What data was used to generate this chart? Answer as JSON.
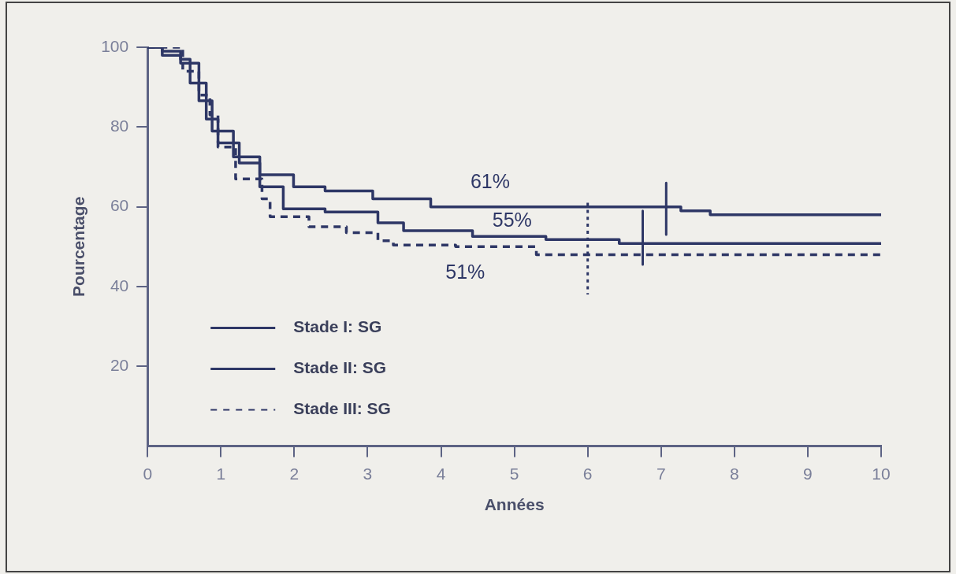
{
  "chart_data": {
    "type": "step",
    "xlabel": "Années",
    "ylabel": "Pourcentage",
    "xlim": [
      0,
      10
    ],
    "xticks": [
      0,
      1,
      2,
      3,
      4,
      5,
      6,
      7,
      8,
      9,
      10
    ],
    "ylim": [
      0,
      100
    ],
    "yticks": [
      20,
      40,
      60,
      80,
      100
    ],
    "grid": false,
    "legend": "bottom left",
    "marker": "none",
    "series": [
      {
        "name": "Stade I: SG",
        "color": "#2e3766",
        "line_style": "solid",
        "x": [
          0,
          0.2,
          0.45,
          0.58,
          0.8,
          0.96,
          1.25,
          1.53,
          1.71,
          1.99,
          2.42,
          3.07,
          3.86,
          7.27,
          7.67,
          10
        ],
        "values": [
          100,
          100,
          99,
          97,
          91,
          82,
          76,
          71,
          68,
          68,
          65,
          64,
          62,
          60,
          59,
          58
        ]
      },
      {
        "name": "Stade II: SG",
        "color": "#2e3766",
        "line_style": "solid",
        "x": [
          0,
          0.2,
          0.45,
          0.7,
          0.88,
          1.17,
          1.53,
          1.85,
          2.42,
          3.14,
          3.49,
          4.43,
          5.43,
          6.43,
          8.5,
          10
        ],
        "values": [
          100,
          100,
          98,
          96,
          86.6,
          79,
          72.5,
          65,
          59.5,
          58.7,
          56,
          54,
          52.6,
          51.8,
          50.8,
          50.8
        ]
      },
      {
        "name": "Stade III: SG",
        "color": "#2e3766",
        "line_style": "dashed",
        "x": [
          0,
          0.48,
          0.7,
          0.85,
          0.96,
          1.2,
          1.56,
          1.67,
          2.2,
          2.71,
          3.14,
          3.35,
          4.2,
          5.3,
          10
        ],
        "values": [
          100,
          100,
          94,
          88,
          83,
          75,
          67,
          62,
          57.5,
          55,
          53.5,
          51.5,
          50.4,
          50,
          48
        ]
      },
      {
        "type": "line",
        "color": "#2e3766",
        "line_style": "solid",
        "x": [
          7.07,
          7.07
        ],
        "values": [
          66,
          53
        ]
      },
      {
        "type": "line",
        "color": "#2e3766",
        "line_style": "solid",
        "x": [
          6.75,
          6.75
        ],
        "values": [
          59,
          45.5
        ]
      },
      {
        "type": "line",
        "color": "#2e3766",
        "line_style": "dotted",
        "x": [
          6,
          6
        ],
        "values": [
          61,
          38
        ]
      }
    ],
    "annotations": [
      "61%",
      "55%",
      "51%"
    ]
  }
}
